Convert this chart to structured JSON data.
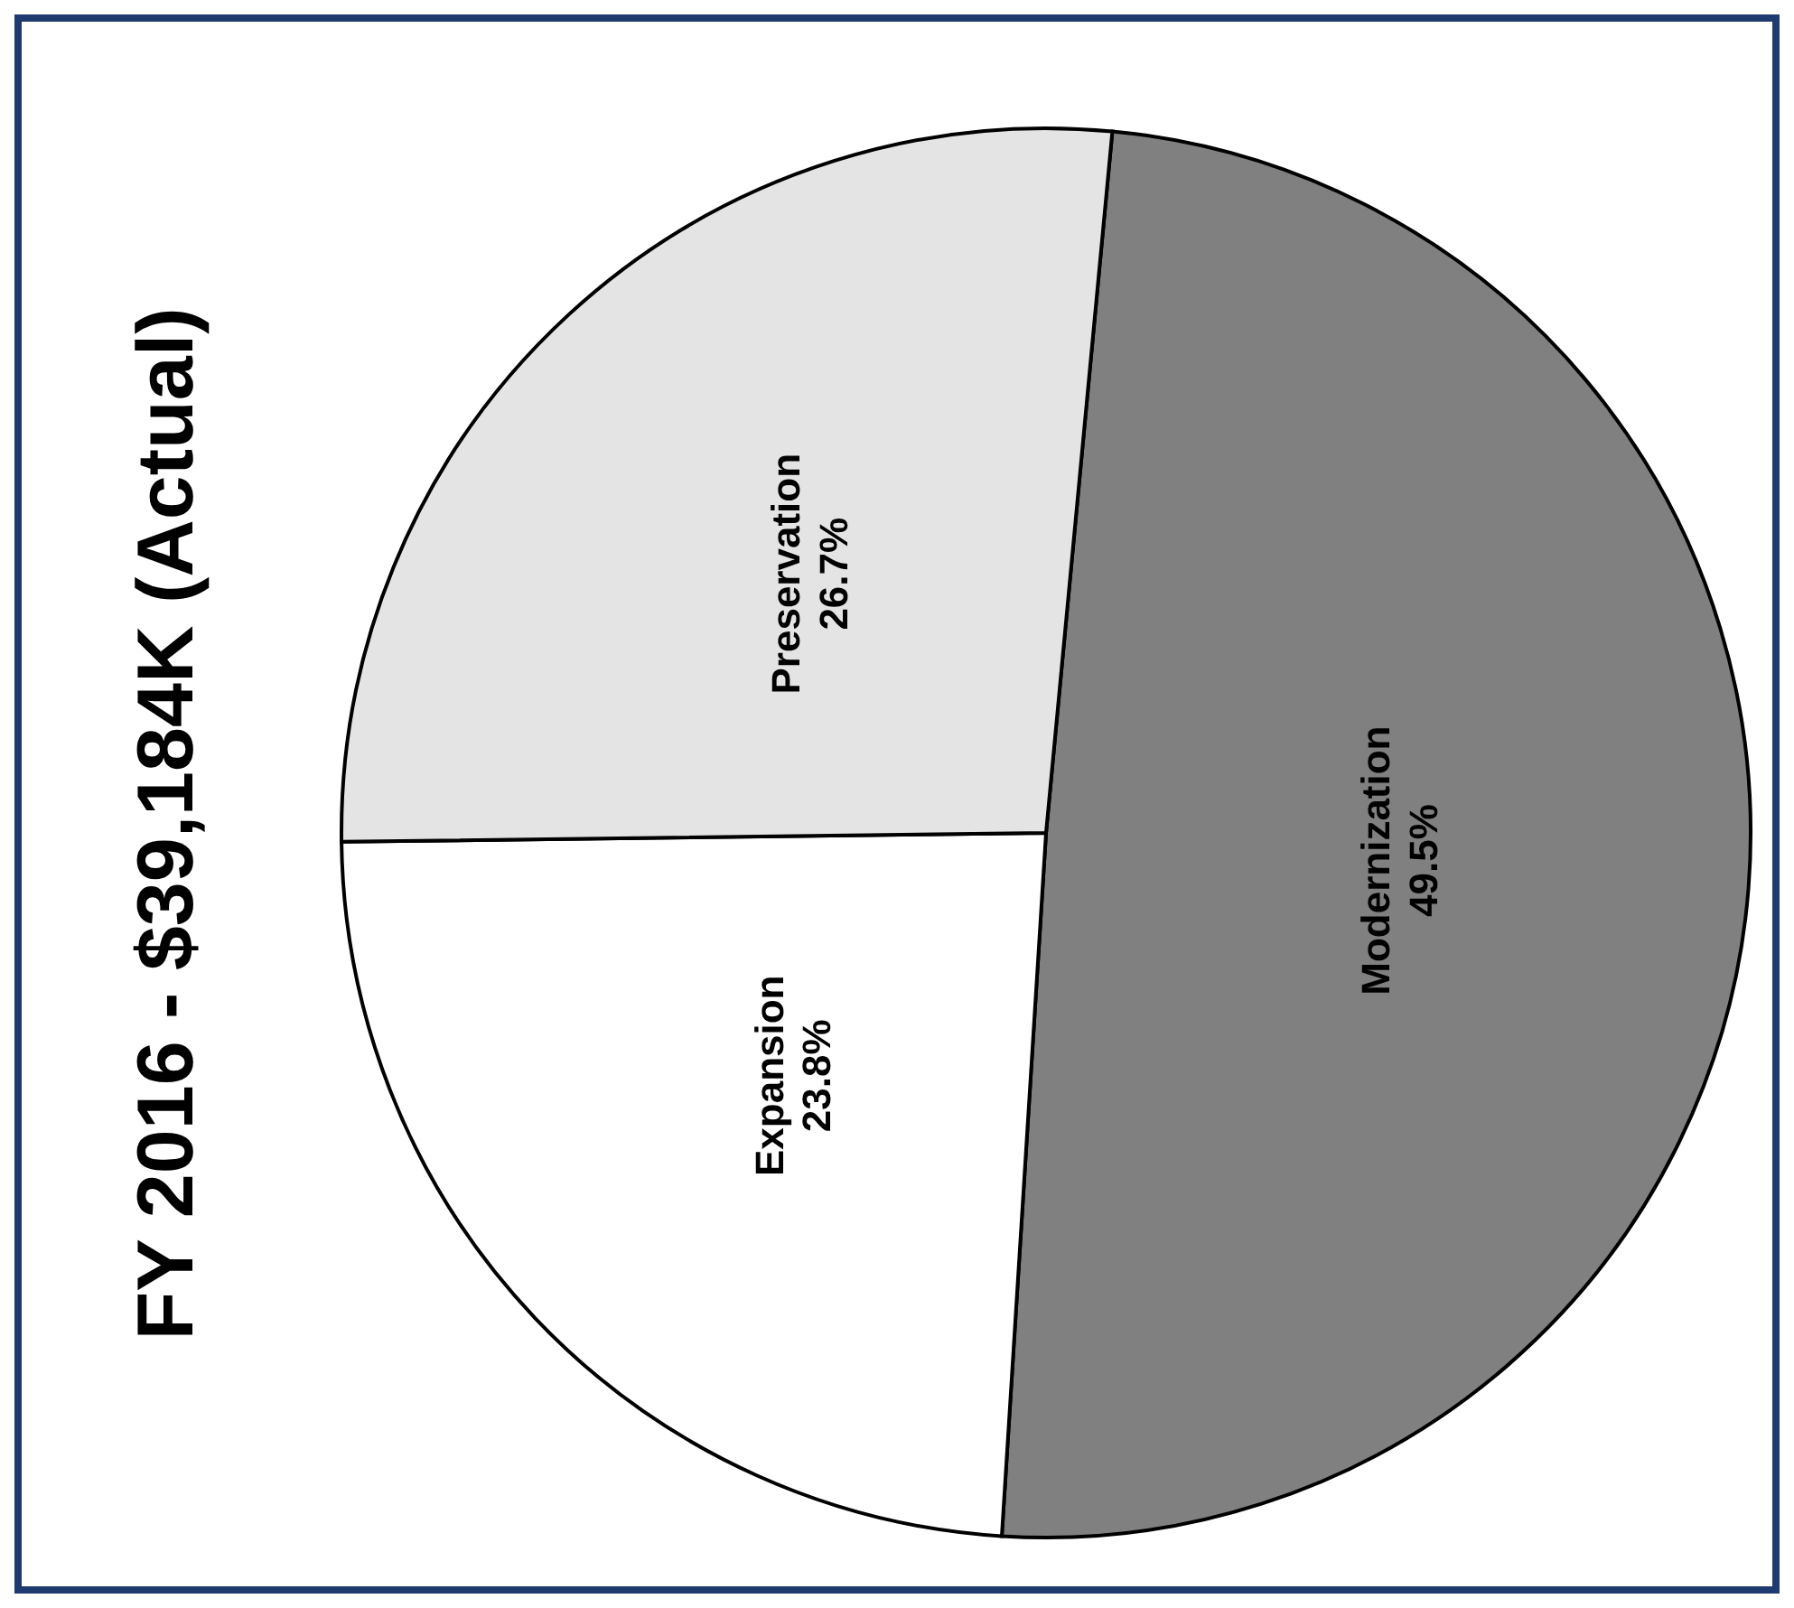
{
  "chart_data": {
    "type": "pie",
    "title": "FY 2016 - $39,184K (Actual)",
    "categories": [
      "Modernization",
      "Expansion",
      "Preservation"
    ],
    "values": [
      49.5,
      23.8,
      26.7
    ],
    "value_labels": [
      "49.5%",
      "23.8%",
      "26.7%"
    ],
    "colors": [
      "#808080",
      "#ffffff",
      "#e4e4e4"
    ],
    "legend": false
  }
}
